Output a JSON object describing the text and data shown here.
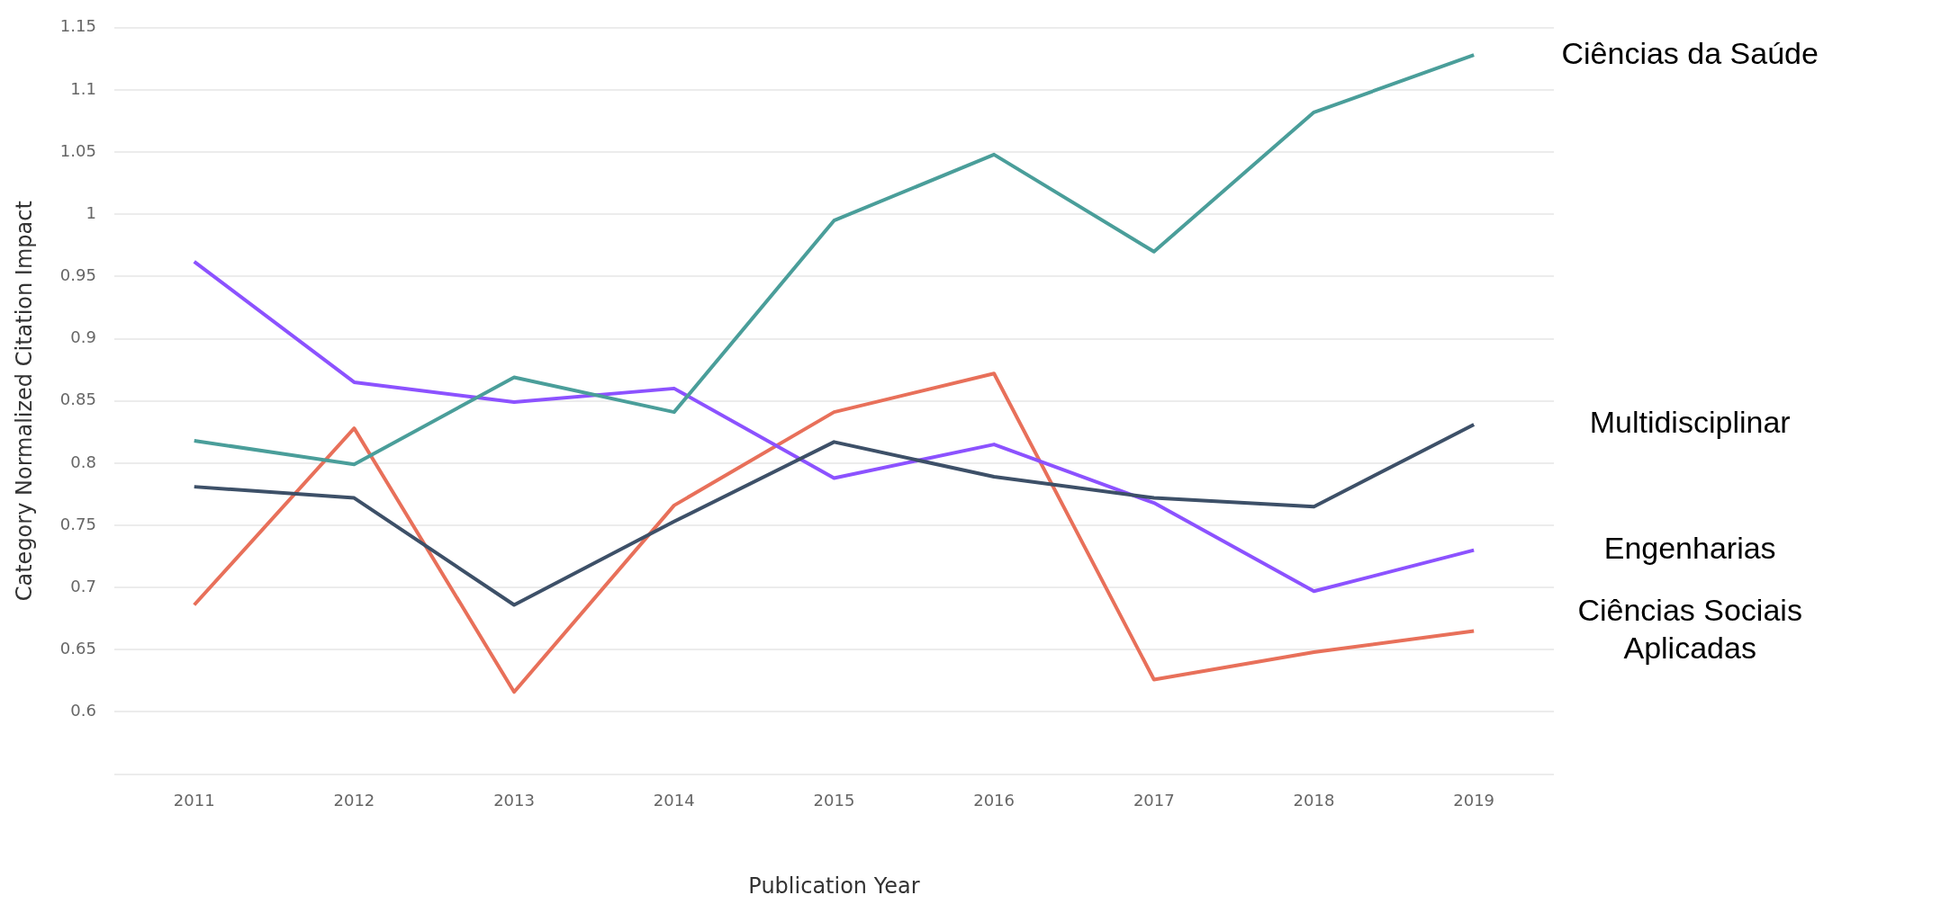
{
  "chart_data": {
    "type": "line",
    "xlabel": "Publication Year",
    "ylabel": "Category Normalized Citation Impact",
    "categories": [
      "2011",
      "2012",
      "2013",
      "2014",
      "2015",
      "2016",
      "2017",
      "2018",
      "2019"
    ],
    "ylim": [
      0.55,
      1.15
    ],
    "yticks": [
      {
        "value": 0.55,
        "label": null
      },
      0.6,
      0.65,
      0.7,
      0.75,
      0.8,
      0.85,
      0.9,
      0.95,
      1,
      1.05,
      1.1,
      1.15
    ],
    "grid": "y",
    "legend": false,
    "marker": "none",
    "line_style": "solid",
    "series": [
      {
        "name": "Ciências da Saúde",
        "color": "#4a9e9a",
        "values": [
          0.818,
          0.799,
          0.869,
          0.841,
          0.995,
          1.048,
          0.97,
          1.082,
          1.128
        ]
      },
      {
        "name": "Multidisciplinar",
        "color": "#3d5068",
        "values": [
          0.781,
          0.772,
          0.686,
          0.753,
          0.817,
          0.789,
          0.772,
          0.765,
          0.831
        ]
      },
      {
        "name": "Engenharias",
        "color": "#8c52ff",
        "values": [
          0.962,
          0.865,
          0.849,
          0.86,
          0.788,
          0.815,
          0.768,
          0.697,
          0.73
        ]
      },
      {
        "name": "Ciências Sociais Aplicadas",
        "color": "#e8705a",
        "values": [
          0.686,
          0.828,
          0.616,
          0.766,
          0.841,
          0.872,
          0.626,
          0.648,
          0.665
        ]
      }
    ]
  }
}
